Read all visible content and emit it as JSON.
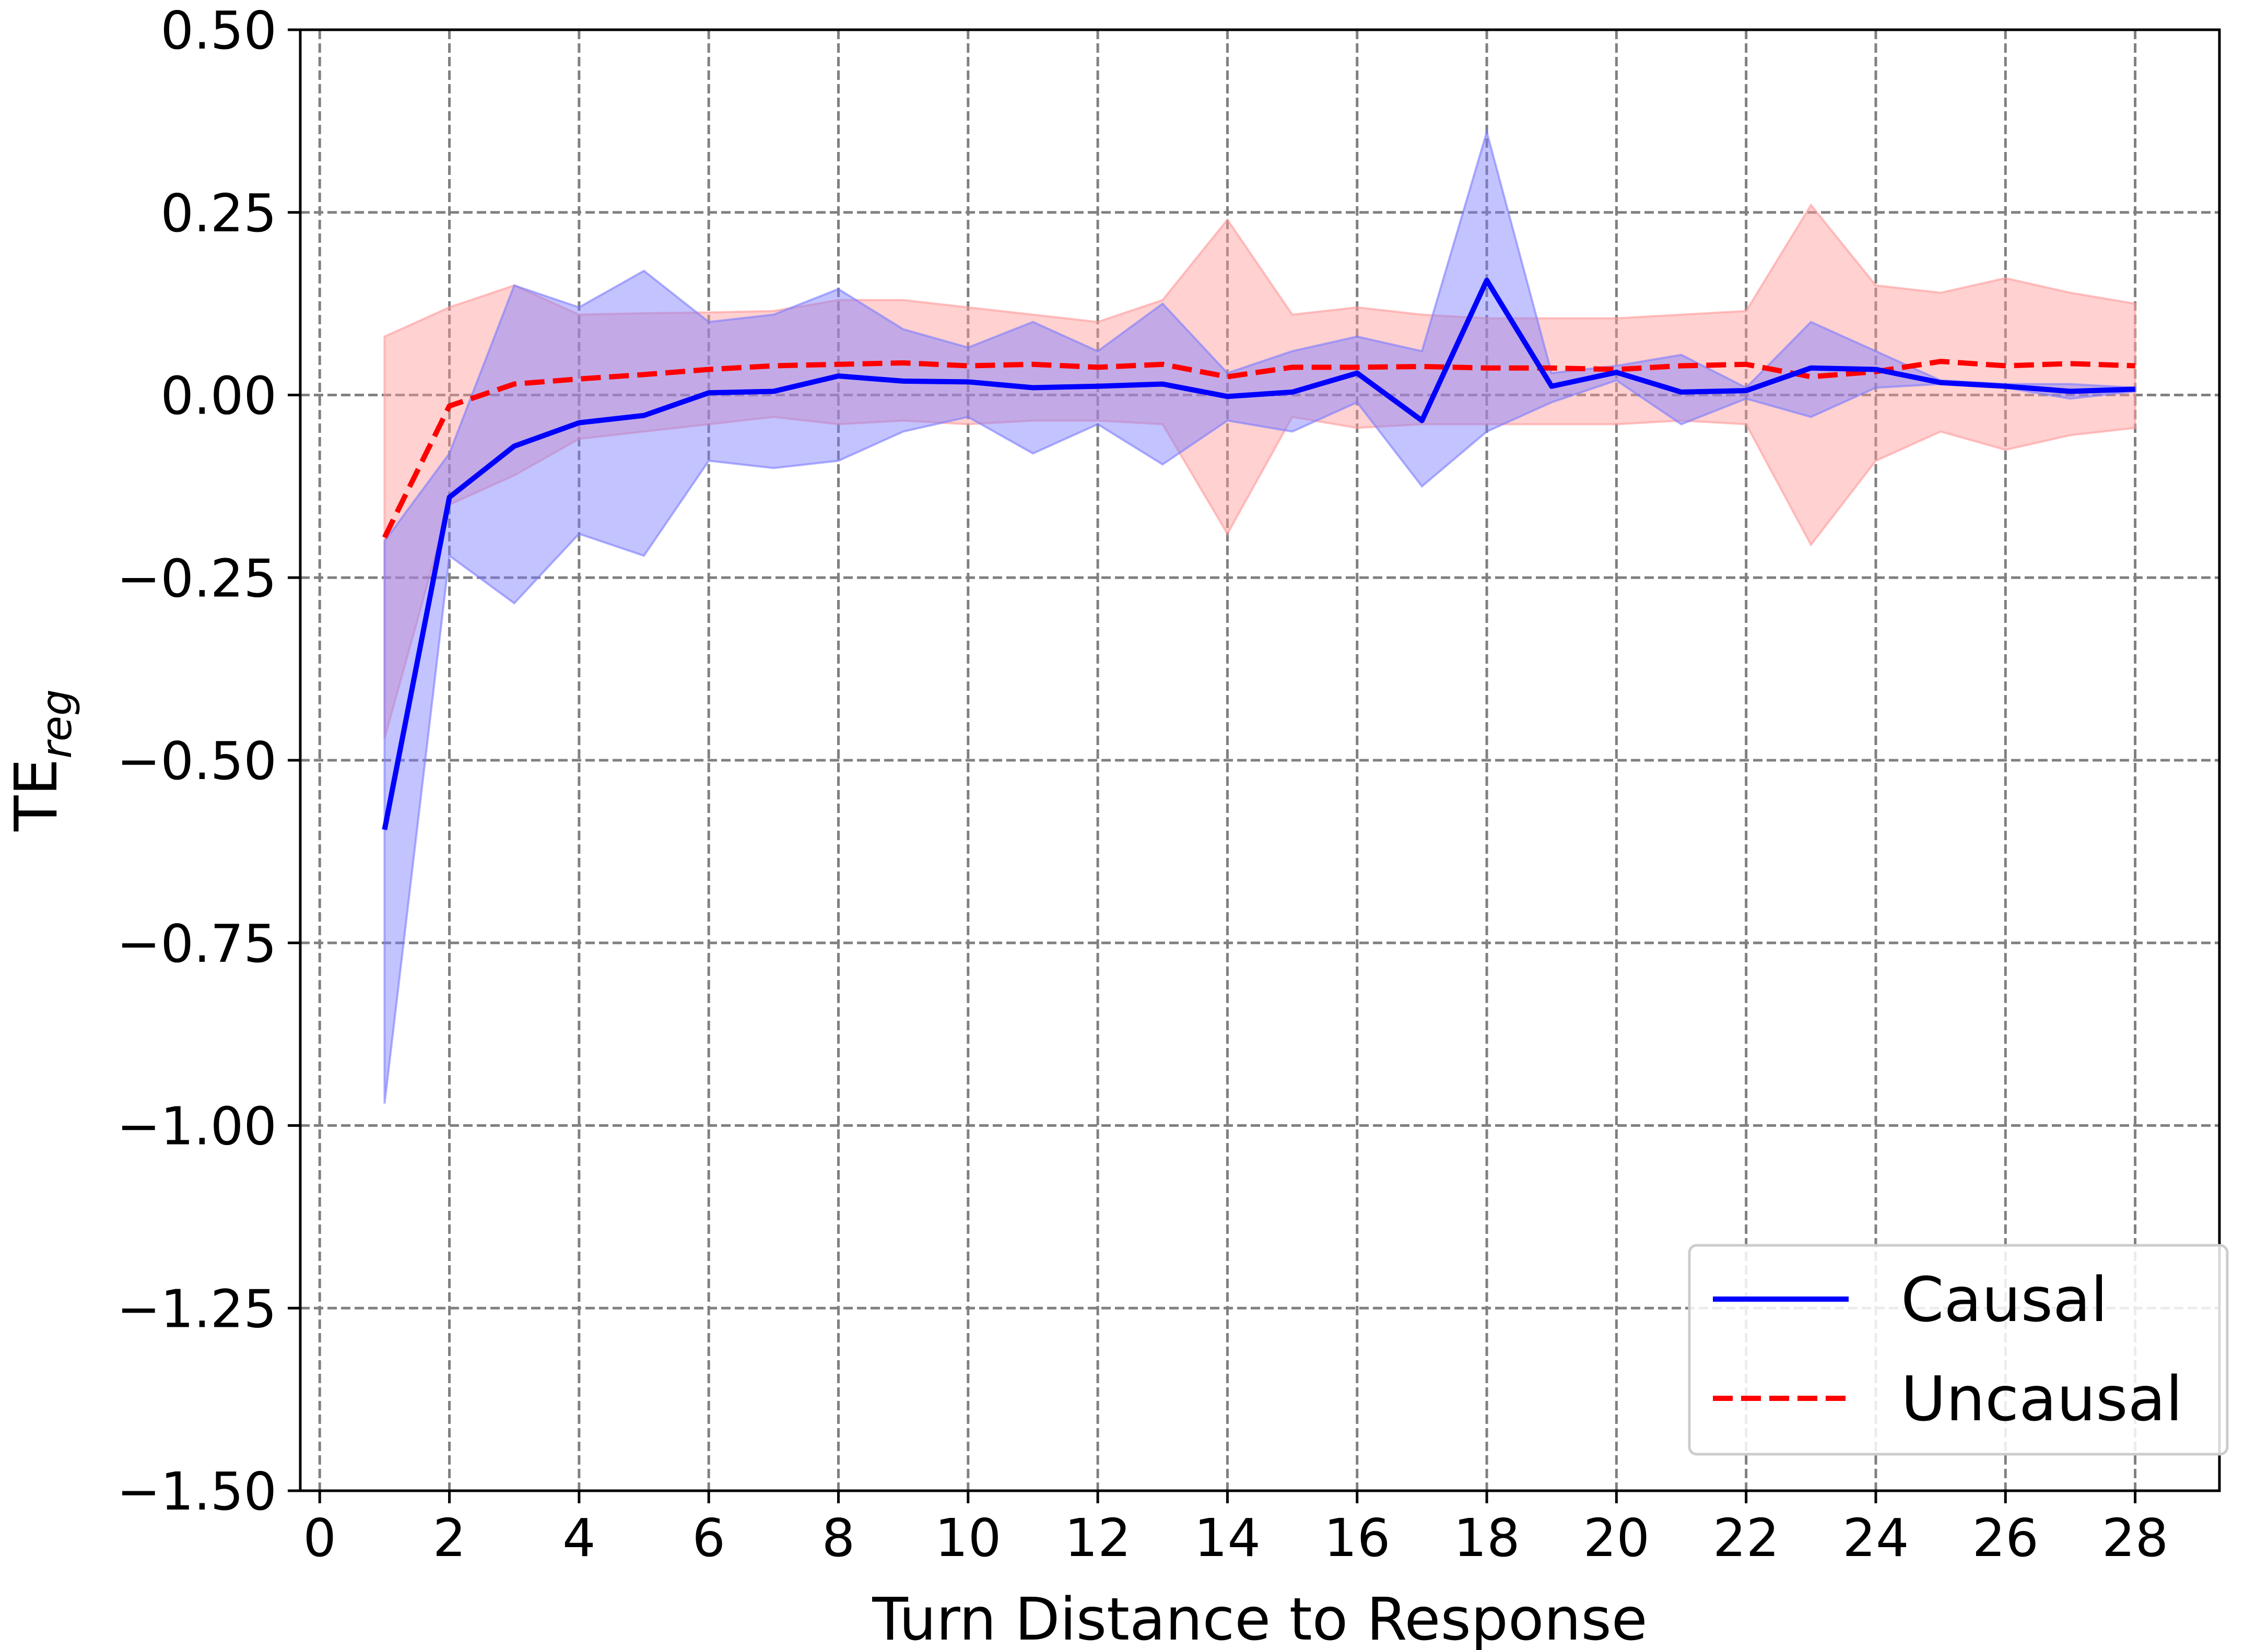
{
  "chart_data": {
    "type": "line",
    "xlabel": "Turn Distance to Response",
    "ylabel": {
      "main": "TE",
      "subscript": "reg"
    },
    "xlim": [
      -0.3,
      29.3
    ],
    "ylim": [
      -1.5,
      0.5
    ],
    "xticks": [
      0,
      2,
      4,
      6,
      8,
      10,
      12,
      14,
      16,
      18,
      20,
      22,
      24,
      26,
      28
    ],
    "xtick_labels": [
      "0",
      "2",
      "4",
      "6",
      "8",
      "10",
      "12",
      "14",
      "16",
      "18",
      "20",
      "22",
      "24",
      "26",
      "28"
    ],
    "yticks": [
      0.5,
      0.25,
      0.0,
      -0.25,
      -0.5,
      -0.75,
      -1.0,
      -1.25,
      -1.5
    ],
    "ytick_labels": [
      "0.50",
      "0.25",
      "0.00",
      "−0.25",
      "−0.50",
      "−0.75",
      "−1.00",
      "−1.25",
      "−1.50"
    ],
    "grid": true,
    "legend_position": "bottom-right",
    "x": [
      1,
      2,
      3,
      4,
      5,
      6,
      7,
      8,
      9,
      10,
      11,
      12,
      13,
      14,
      15,
      16,
      17,
      18,
      19,
      20,
      21,
      22,
      23,
      24,
      25,
      26,
      27,
      28
    ],
    "series": [
      {
        "name": "Causal",
        "color": "#0000ff",
        "band_color": "#7b7bff",
        "style": "solid",
        "values": [
          -0.595,
          -0.14,
          -0.07,
          -0.038,
          -0.028,
          0.003,
          0.005,
          0.026,
          0.019,
          0.018,
          0.01,
          0.012,
          0.015,
          -0.002,
          0.004,
          0.03,
          -0.035,
          0.157,
          0.012,
          0.031,
          0.004,
          0.006,
          0.037,
          0.035,
          0.017,
          0.012,
          0.005,
          0.008
        ],
        "upper": [
          -0.2,
          -0.08,
          0.15,
          0.12,
          0.17,
          0.1,
          0.11,
          0.145,
          0.09,
          0.065,
          0.1,
          0.06,
          0.125,
          0.03,
          0.06,
          0.08,
          0.06,
          0.36,
          0.03,
          0.04,
          0.055,
          0.01,
          0.1,
          0.06,
          0.02,
          0.015,
          0.015,
          0.01
        ],
        "lower": [
          -0.97,
          -0.22,
          -0.285,
          -0.19,
          -0.22,
          -0.09,
          -0.1,
          -0.09,
          -0.05,
          -0.03,
          -0.08,
          -0.04,
          -0.095,
          -0.035,
          -0.05,
          -0.01,
          -0.125,
          -0.05,
          -0.01,
          0.02,
          -0.04,
          -0.005,
          -0.03,
          0.01,
          0.015,
          0.01,
          -0.005,
          0.005
        ]
      },
      {
        "name": "Uncausal",
        "color": "#ff0000",
        "band_color": "#ff9999",
        "style": "dashed",
        "values": [
          -0.195,
          -0.015,
          0.015,
          0.022,
          0.028,
          0.035,
          0.04,
          0.042,
          0.044,
          0.04,
          0.042,
          0.038,
          0.042,
          0.025,
          0.038,
          0.038,
          0.039,
          0.037,
          0.037,
          0.035,
          0.04,
          0.042,
          0.025,
          0.032,
          0.046,
          0.04,
          0.043,
          0.04
        ],
        "upper": [
          0.08,
          0.12,
          0.15,
          0.11,
          0.112,
          0.113,
          0.115,
          0.13,
          0.13,
          0.12,
          0.11,
          0.1,
          0.13,
          0.24,
          0.11,
          0.12,
          0.11,
          0.105,
          0.105,
          0.105,
          0.11,
          0.115,
          0.26,
          0.15,
          0.14,
          0.16,
          0.14,
          0.125
        ],
        "lower": [
          -0.47,
          -0.15,
          -0.11,
          -0.06,
          -0.05,
          -0.04,
          -0.03,
          -0.04,
          -0.035,
          -0.04,
          -0.035,
          -0.035,
          -0.04,
          -0.19,
          -0.03,
          -0.045,
          -0.04,
          -0.04,
          -0.04,
          -0.04,
          -0.035,
          -0.04,
          -0.205,
          -0.09,
          -0.05,
          -0.075,
          -0.055,
          -0.045
        ]
      }
    ]
  }
}
